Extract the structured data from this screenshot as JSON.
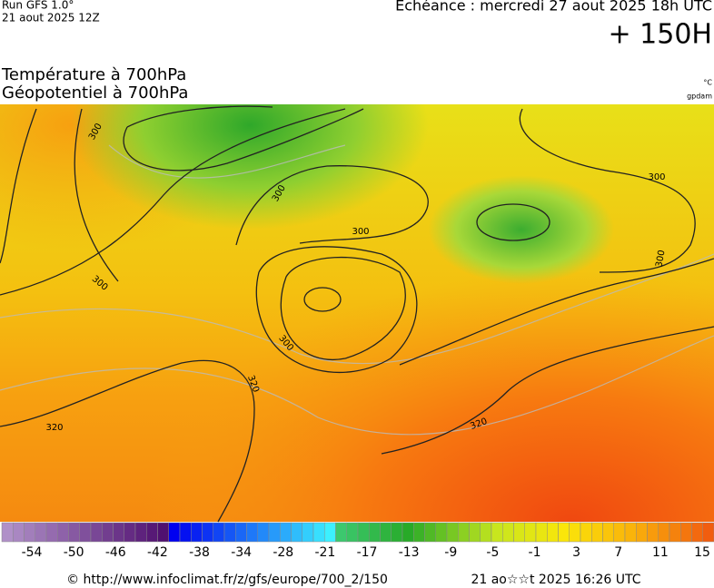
{
  "header": {
    "run": "Run GFS 1.0°",
    "run_date": "21 aout 2025 12Z",
    "forecast": "Echéance : mercredi 27 aout 2025 18h UTC",
    "lead_time": "+ 150H"
  },
  "titles": [
    "Température à 700hPa",
    "Géopotentiel à 700hPa"
  ],
  "units": [
    "°C",
    "gpdam"
  ],
  "contour_labels": [
    "300",
    "300",
    "300",
    "300",
    "300",
    "300",
    "300",
    "320",
    "320",
    "320"
  ],
  "colorbar": {
    "labels": [
      "-54",
      "-50",
      "-46",
      "-42",
      "-38",
      "-34",
      "-28",
      "-21",
      "-17",
      "-13",
      "-9",
      "-5",
      "-1",
      "3",
      "7",
      "11",
      "15"
    ]
  },
  "footer": {
    "url": "© http://www.infoclimat.fr/z/gfs/europe/700_2/150",
    "timestamp": "21 ao☆☆t 2025 16:26 UTC"
  }
}
